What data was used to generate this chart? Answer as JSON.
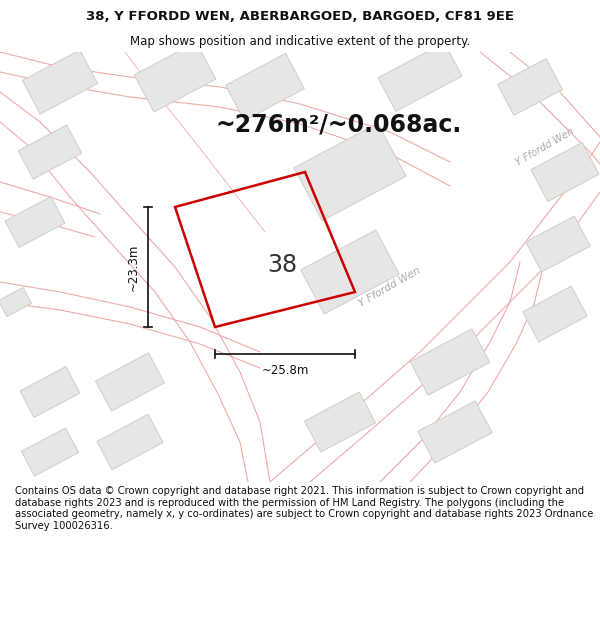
{
  "title_line1": "38, Y FFORDD WEN, ABERBARGOED, BARGOED, CF81 9EE",
  "title_line2": "Map shows position and indicative extent of the property.",
  "area_text": "~276m²/~0.068ac.",
  "plot_number": "38",
  "dim_width": "~25.8m",
  "dim_height": "~23.3m",
  "road_label_main": "Y Ffordd Wen",
  "road_label_upper": "Y Ffordd Wen",
  "footer_text": "Contains OS data © Crown copyright and database right 2021. This information is subject to Crown copyright and database rights 2023 and is reproduced with the permission of HM Land Registry. The polygons (including the associated geometry, namely x, y co-ordinates) are subject to Crown copyright and database rights 2023 Ordnance Survey 100026316.",
  "map_bg": "#f7f6f4",
  "building_fill": "#e8e6e4",
  "building_edge": "#d0cdc9",
  "road_line_color": "#f0aaaa",
  "plot_edge": "#cc0000",
  "plot_lw": 1.8,
  "white_bg": "#ffffff",
  "dim_line_color": "#111111",
  "text_color": "#111111",
  "road_text_color": "#aaaaaa",
  "title_fontsize": 9.5,
  "subtitle_fontsize": 8.5,
  "area_fontsize": 17,
  "plot_num_fontsize": 17,
  "dim_fontsize": 8.5,
  "road_fontsize": 7.5,
  "footer_fontsize": 7.2
}
